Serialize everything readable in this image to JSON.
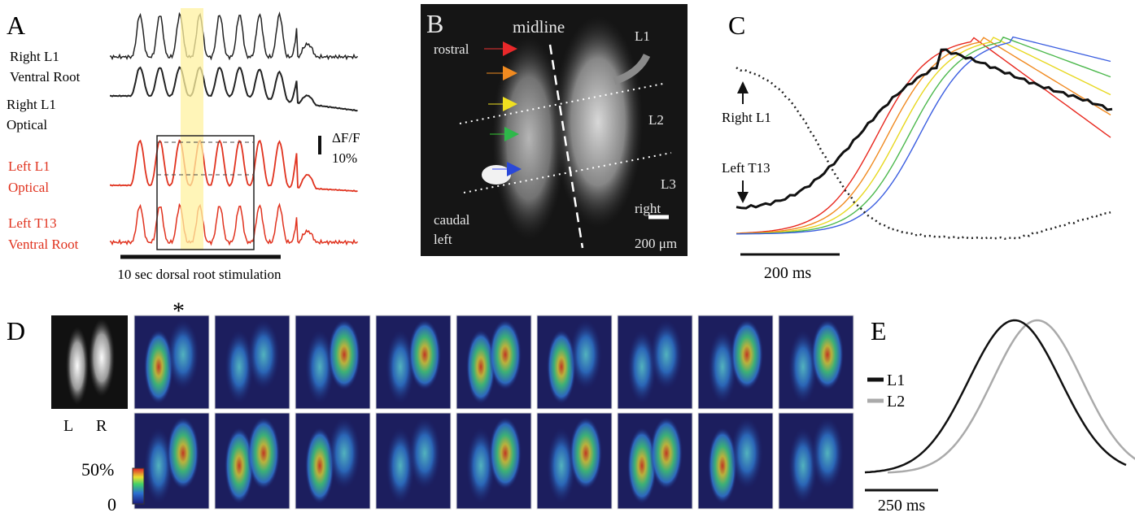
{
  "panel_a": {
    "label": "A",
    "trace_labels": [
      [
        "Right L1",
        "Ventral Root"
      ],
      [
        "Right L1",
        "Optical"
      ],
      [
        "Left L1",
        "Optical"
      ],
      [
        "Left T13",
        "Ventral Root"
      ]
    ],
    "scale_label": [
      "ΔF/F",
      "10%"
    ],
    "stimulus": "10 sec dorsal root stimulation"
  },
  "panel_b": {
    "label": "B",
    "midline": "midline",
    "rostral": "rostral",
    "segments": [
      "L1",
      "L2",
      "L3"
    ],
    "caudal": "caudal",
    "left": "left",
    "right": "right",
    "scale_bar": "200 μm"
  },
  "panel_c": {
    "label": "C",
    "trace_labels": [
      "Right L1",
      "Left T13"
    ],
    "scale_bar": "200 ms"
  },
  "panel_d": {
    "label": "D",
    "marker": "*",
    "sides": [
      "L",
      "R"
    ],
    "colorbar_ticks": [
      "50%",
      "0"
    ]
  },
  "panel_e": {
    "label": "E",
    "legend": [
      "L1",
      "L2"
    ],
    "scale_bar": "250 ms"
  }
}
